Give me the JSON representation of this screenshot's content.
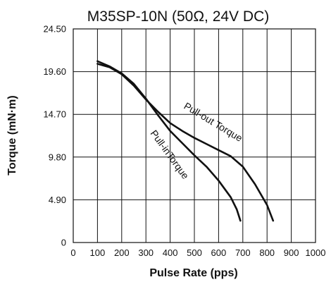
{
  "chart_data": {
    "type": "line",
    "title": "M35SP-10N (50Ω, 24V DC)",
    "xlabel": "Pulse Rate (pps)",
    "ylabel": "Torque (mN·m)",
    "xlim": [
      0,
      1000
    ],
    "ylim": [
      0,
      24.5
    ],
    "x_ticks": [
      0,
      100,
      200,
      300,
      400,
      500,
      600,
      700,
      800,
      900,
      1000
    ],
    "y_ticks": [
      {
        "value": 0,
        "label": "0"
      },
      {
        "value": 4.9,
        "label": "4.90"
      },
      {
        "value": 9.8,
        "label": "9.80"
      },
      {
        "value": 14.7,
        "label": "14.70"
      },
      {
        "value": 19.6,
        "label": "19.60"
      },
      {
        "value": 24.5,
        "label": "24.50"
      }
    ],
    "grid": true,
    "series": [
      {
        "name": "Pull-out Torque",
        "color": "#111111",
        "points": [
          [
            100,
            20.5
          ],
          [
            150,
            20.1
          ],
          [
            200,
            19.3
          ],
          [
            250,
            18.0
          ],
          [
            300,
            16.4
          ],
          [
            350,
            15.0
          ],
          [
            400,
            13.7
          ],
          [
            450,
            12.8
          ],
          [
            500,
            12.0
          ],
          [
            550,
            11.3
          ],
          [
            600,
            10.6
          ],
          [
            650,
            9.9
          ],
          [
            700,
            8.7
          ],
          [
            750,
            6.7
          ],
          [
            800,
            4.3
          ],
          [
            825,
            2.5
          ]
        ]
      },
      {
        "name": "Pull-inTorque",
        "color": "#111111",
        "points": [
          [
            100,
            20.8
          ],
          [
            150,
            20.2
          ],
          [
            200,
            19.4
          ],
          [
            250,
            18.2
          ],
          [
            300,
            16.5
          ],
          [
            350,
            14.6
          ],
          [
            400,
            12.8
          ],
          [
            450,
            11.4
          ],
          [
            500,
            10.0
          ],
          [
            550,
            8.7
          ],
          [
            600,
            7.1
          ],
          [
            650,
            5.2
          ],
          [
            675,
            3.8
          ],
          [
            690,
            2.5
          ]
        ]
      }
    ],
    "annotations": [
      {
        "text": "Pull-out Torque",
        "series": 0
      },
      {
        "text": "Pull-inTorque",
        "series": 1
      }
    ]
  }
}
